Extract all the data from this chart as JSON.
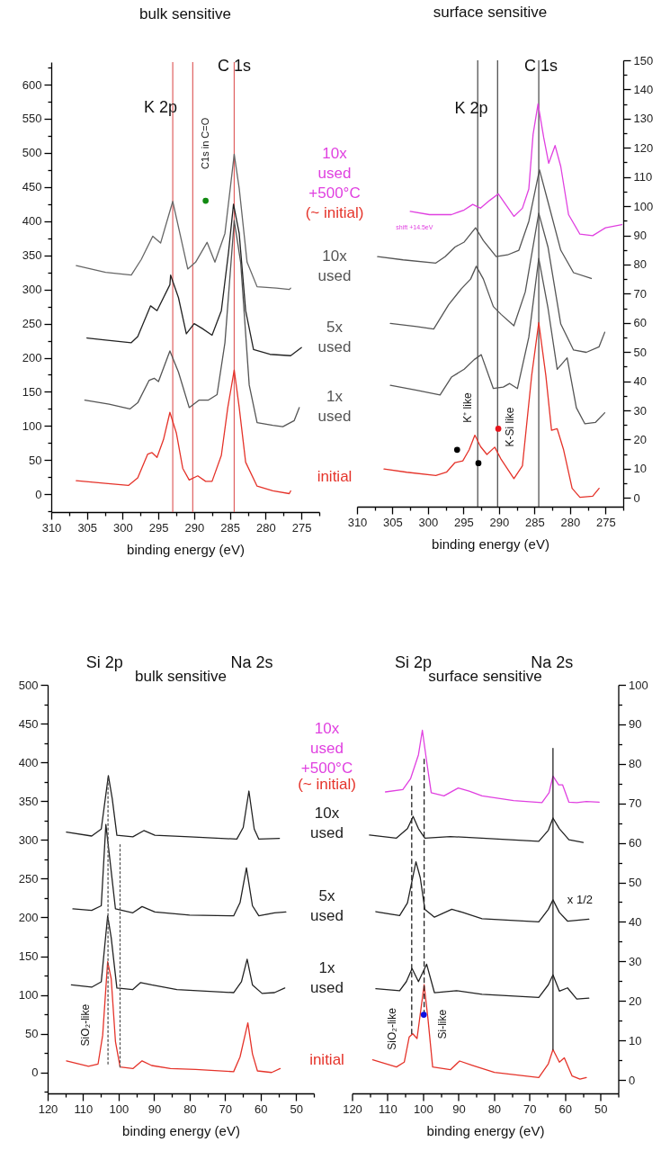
{
  "chart_data": [
    {
      "type": "line",
      "title": "bulk sensitive",
      "xlabel": "binding energy (eV)",
      "xlim": [
        310,
        272.5
      ],
      "ylim": [
        -26,
        633
      ],
      "xticks": [
        310,
        {
          "value": 307.5,
          "label": null
        },
        305,
        {
          "value": 302.5,
          "label": null
        },
        300,
        {
          "value": 297.5,
          "label": null
        },
        295,
        {
          "value": 292.5,
          "label": null
        },
        290,
        {
          "value": 287.5,
          "label": null
        },
        285,
        {
          "value": 282.5,
          "label": null
        },
        280,
        {
          "value": 277.5,
          "label": null
        },
        275,
        {
          "value": 272.5,
          "label": null
        }
      ],
      "yticks": [
        {
          "value": -25,
          "label": null
        },
        0,
        {
          "value": 25,
          "label": null
        },
        50,
        {
          "value": 75,
          "label": null
        },
        100,
        {
          "value": 125,
          "label": null
        },
        150,
        {
          "value": 175,
          "label": null
        },
        200,
        {
          "value": 225,
          "label": null
        },
        250,
        {
          "value": 275,
          "label": null
        },
        300,
        {
          "value": 325,
          "label": null
        },
        350,
        {
          "value": 375,
          "label": null
        },
        400,
        {
          "value": 425,
          "label": null
        },
        450,
        {
          "value": 475,
          "label": null
        },
        500,
        {
          "value": 525,
          "label": null
        },
        550,
        {
          "value": 575,
          "label": null
        },
        600,
        {
          "value": 625,
          "label": null
        }
      ],
      "annotations": [
        "K 2p",
        "C 1s",
        "C1s in C=O"
      ],
      "ref_lines": [
        {
          "axis": "x",
          "value": 293,
          "color": "#e06060"
        },
        {
          "axis": "x",
          "value": 290.2,
          "color": "#e06060"
        },
        {
          "axis": "x",
          "value": 284.4,
          "color": "#e06060"
        }
      ],
      "series": [
        {
          "color": "#e5332a",
          "x": [
            306.5,
            302.4,
            299.2,
            297.9,
            296.5,
            295.9,
            295.2,
            294.3,
            293.4,
            292.5,
            291.6,
            290.7,
            289.5,
            288.4,
            287.5,
            286.2,
            285.3,
            284.4,
            283.7,
            282.8,
            281.2,
            279.0,
            276.7,
            276.5
          ],
          "values": [
            20,
            16,
            13,
            24,
            59,
            61,
            54,
            80,
            120,
            90,
            38,
            21,
            27,
            19,
            19,
            57,
            127,
            182,
            127,
            47,
            12,
            5,
            1,
            5
          ]
        },
        {
          "color": "#555555",
          "x": [
            305.3,
            301.9,
            299.0,
            297.9,
            296.3,
            295.6,
            295.0,
            293.4,
            292.2,
            290.7,
            289.3,
            288.0,
            286.8,
            285.7,
            284.4,
            283.5,
            282.3,
            281.2,
            279.0,
            277.6,
            276.0,
            275.3
          ],
          "values": [
            138,
            132,
            125,
            134,
            167,
            170,
            165,
            210,
            179,
            127,
            138,
            138,
            146,
            222,
            401,
            340,
            160,
            105,
            101,
            99,
            108,
            127
          ]
        },
        {
          "color": "#222222",
          "x": [
            305.0,
            302.4,
            298.8,
            297.9,
            296.1,
            295.2,
            293.4,
            293.3,
            292.2,
            291.1,
            290.0,
            288.9,
            287.5,
            286.2,
            285.2,
            284.5,
            283.7,
            282.8,
            281.7,
            279.4,
            276.5,
            275.0
          ],
          "values": [
            229,
            226,
            222,
            231,
            276,
            269,
            307,
            321,
            288,
            235,
            250,
            243,
            233,
            269,
            354,
            425,
            382,
            269,
            212,
            205,
            203,
            215
          ]
        },
        {
          "color": "#666666",
          "x": [
            306.5,
            302.4,
            298.8,
            297.4,
            295.8,
            294.7,
            293.0,
            292.0,
            290.9,
            289.8,
            288.2,
            287.1,
            285.7,
            284.9,
            284.4,
            283.7,
            282.6,
            281.2,
            278.5,
            276.7,
            276.5
          ],
          "values": [
            335,
            325,
            321,
            344,
            378,
            368,
            429,
            382,
            330,
            340,
            369,
            340,
            382,
            453,
            498,
            448,
            340,
            304,
            302,
            300,
            302
          ]
        },
        {
          "type": "scatter",
          "color": "#118a11",
          "x": [
            288.4
          ],
          "values": [
            430
          ]
        }
      ]
    },
    {
      "type": "line",
      "title": "surface sensitive",
      "xlabel": "binding energy (eV)",
      "xlim": [
        310,
        272.5
      ],
      "y2lim": [
        -3,
        150
      ],
      "xticks": [
        310,
        {
          "value": 307.5,
          "label": null
        },
        305,
        {
          "value": 302.5,
          "label": null
        },
        300,
        {
          "value": 297.5,
          "label": null
        },
        295,
        {
          "value": 292.5,
          "label": null
        },
        290,
        {
          "value": 287.5,
          "label": null
        },
        285,
        {
          "value": 282.5,
          "label": null
        },
        280,
        {
          "value": 277.5,
          "label": null
        },
        275,
        {
          "value": 272.5,
          "label": null
        }
      ],
      "y2ticks": [
        0,
        {
          "value": 5,
          "label": null
        },
        10,
        {
          "value": 15,
          "label": null
        },
        20,
        {
          "value": 25,
          "label": null
        },
        30,
        {
          "value": 35,
          "label": null
        },
        40,
        {
          "value": 45,
          "label": null
        },
        50,
        {
          "value": 55,
          "label": null
        },
        60,
        {
          "value": 65,
          "label": null
        },
        70,
        {
          "value": 75,
          "label": null
        },
        80,
        {
          "value": 85,
          "label": null
        },
        90,
        {
          "value": 95,
          "label": null
        },
        100,
        {
          "value": 105,
          "label": null
        },
        110,
        {
          "value": 115,
          "label": null
        },
        120,
        {
          "value": 125,
          "label": null
        },
        130,
        {
          "value": 135,
          "label": null
        },
        140,
        {
          "value": 145,
          "label": null
        },
        150
      ],
      "annotations": [
        "K 2p",
        "C 1s",
        "K⁺ like",
        "K-Si like",
        "shift +14.5eV",
        "(~ initial)"
      ],
      "ref_lines": [
        {
          "axis": "x",
          "value": 293,
          "color": "#444444"
        },
        {
          "axis": "x",
          "value": 290.2,
          "color": "#444444"
        },
        {
          "axis": "x",
          "value": 284.4,
          "color": "#444444"
        }
      ],
      "series": [
        {
          "name": "initial",
          "axis": "y2",
          "color": "#e5332a",
          "x": [
            306.2,
            303.0,
            298.9,
            297.4,
            296.2,
            295.1,
            294.2,
            293.4,
            292.6,
            291.7,
            290.6,
            289.7,
            287.9,
            286.7,
            285.4,
            284.4,
            283.4,
            282.6,
            281.8,
            280.9,
            279.7,
            278.6,
            276.8,
            275.9
          ],
          "values": [
            9.9,
            8.8,
            7.7,
            8.8,
            12.1,
            12.7,
            16.5,
            21.5,
            17.6,
            14.9,
            17.4,
            13.2,
            6.6,
            11.0,
            41.9,
            60.1,
            41.9,
            23.2,
            23.7,
            16.5,
            3.3,
            0.2,
            0.6,
            3.3
          ]
        },
        {
          "name": "1x used",
          "axis": "y2",
          "color": "#555555",
          "x": [
            305.3,
            301.6,
            298.3,
            296.7,
            294.9,
            293.5,
            292.5,
            290.8,
            289.4,
            288.5,
            287.4,
            285.8,
            284.4,
            283.1,
            281.8,
            280.4,
            279.1,
            277.9,
            276.4,
            275.1
          ],
          "values": [
            38.6,
            36.9,
            35.3,
            41.4,
            44.1,
            47.4,
            49.1,
            37.5,
            38.0,
            39.2,
            37.5,
            55.1,
            82.1,
            65.1,
            44.1,
            48.0,
            30.9,
            25.4,
            25.9,
            29.2
          ]
        },
        {
          "name": "5x used",
          "axis": "y2",
          "color": "#555555",
          "x": [
            305.3,
            301.6,
            299.2,
            297.1,
            295.3,
            294.0,
            293.2,
            292.2,
            290.8,
            289.7,
            287.9,
            286.3,
            284.4,
            283.1,
            281.3,
            279.5,
            277.7,
            275.9,
            275.1
          ],
          "values": [
            59.8,
            58.7,
            57.9,
            66.2,
            71.7,
            75.0,
            79.4,
            75.0,
            65.6,
            62.9,
            59.0,
            70.6,
            97.6,
            86.0,
            59.6,
            50.7,
            49.9,
            51.8,
            56.8
          ]
        },
        {
          "name": "10x used",
          "axis": "y2",
          "color": "#555555",
          "x": [
            307.1,
            303.5,
            298.9,
            297.6,
            296.2,
            294.9,
            293.3,
            292.2,
            290.4,
            288.8,
            287.2,
            285.8,
            284.3,
            283.1,
            281.3,
            279.5,
            277.0
          ],
          "values": [
            82.7,
            81.6,
            80.5,
            82.7,
            86.0,
            87.7,
            92.6,
            88.2,
            82.7,
            83.3,
            84.9,
            94.8,
            112.5,
            101.5,
            84.9,
            77.2,
            75.2
          ]
        },
        {
          "name": "10x used +500°C",
          "axis": "y2",
          "color": "#e040e0",
          "x": [
            302.5,
            299.8,
            296.7,
            294.9,
            293.7,
            292.6,
            291.3,
            290.1,
            289.0,
            287.9,
            286.7,
            285.8,
            285.2,
            284.5,
            283.7,
            283.0,
            282.1,
            281.3,
            280.2,
            278.6,
            276.8,
            275.0,
            272.7
          ],
          "values": [
            98.2,
            97.1,
            97.1,
            98.7,
            100.6,
            99.3,
            102.0,
            104.2,
            100.4,
            96.5,
            99.3,
            105.9,
            124.6,
            135.1,
            123.5,
            114.7,
            120.8,
            113.6,
            97.1,
            90.4,
            89.9,
            92.6,
            93.7
          ]
        },
        {
          "type": "scatter",
          "axis": "y2",
          "color": "#000000",
          "x": [
            295.9,
            292.9
          ],
          "values": [
            16.5,
            11.9
          ]
        },
        {
          "type": "scatter",
          "axis": "y2",
          "color": "#e8141c",
          "x": [
            290.1
          ],
          "values": [
            23.7
          ]
        }
      ]
    },
    {
      "type": "line",
      "title": "bulk sensitive",
      "xlabel": "binding energy (eV)",
      "xlim": [
        120,
        45
      ],
      "ylim": [
        -27,
        500
      ],
      "xticks": [
        120,
        {
          "value": 115,
          "label": null
        },
        110,
        {
          "value": 105,
          "label": null
        },
        100,
        {
          "value": 95,
          "label": null
        },
        90,
        {
          "value": 85,
          "label": null
        },
        80,
        {
          "value": 75,
          "label": null
        },
        70,
        {
          "value": 65,
          "label": null
        },
        60,
        {
          "value": 55,
          "label": null
        },
        50,
        {
          "value": 45,
          "label": null
        }
      ],
      "yticks": [
        {
          "value": -25,
          "label": null
        },
        0,
        {
          "value": 25,
          "label": null
        },
        50,
        {
          "value": 75,
          "label": null
        },
        100,
        {
          "value": 125,
          "label": null
        },
        150,
        {
          "value": 175,
          "label": null
        },
        200,
        {
          "value": 225,
          "label": null
        },
        250,
        {
          "value": 275,
          "label": null
        },
        300,
        {
          "value": 325,
          "label": null
        },
        350,
        {
          "value": 375,
          "label": null
        },
        400,
        {
          "value": 425,
          "label": null
        },
        450,
        {
          "value": 475,
          "label": null
        },
        500
      ],
      "annotations": [
        "Si 2p",
        "Na 2s",
        "SiO₂-like"
      ],
      "series": [
        {
          "color": "#e5332a",
          "x": [
            114.7,
            108.5,
            105.8,
            104.5,
            103.1,
            102.1,
            100.9,
            99.6,
            96.0,
            93.4,
            90.7,
            85.4,
            78.3,
            67.6,
            65.8,
            63.6,
            62.3,
            60.9,
            56.9,
            54.5
          ],
          "values": [
            15,
            8,
            11,
            48,
            143,
            121,
            40,
            7,
            5,
            15,
            9,
            5,
            4,
            1,
            20,
            64,
            24,
            2,
            0,
            5
          ]
        },
        {
          "color": "#222222",
          "x": [
            113.3,
            107.6,
            104.9,
            103.1,
            102.1,
            100.5,
            96.0,
            93.8,
            90.7,
            83.6,
            67.6,
            65.4,
            63.8,
            62.3,
            59.6,
            56.1,
            53.2
          ],
          "values": [
            113,
            110,
            117,
            202,
            174,
            109,
            107,
            116,
            113,
            107,
            103,
            117,
            146,
            113,
            102,
            103,
            109
          ]
        },
        {
          "color": "#222222",
          "x": [
            112.9,
            107.6,
            104.9,
            103.6,
            102.7,
            100.9,
            96.0,
            93.4,
            89.8,
            80.0,
            67.6,
            65.8,
            64.0,
            62.3,
            60.5,
            56.1,
            52.9
          ],
          "values": [
            211,
            209,
            215,
            320,
            284,
            211,
            206,
            214,
            207,
            203,
            202,
            219,
            264,
            215,
            202,
            206,
            207
          ]
        },
        {
          "color": "#222222",
          "x": [
            114.7,
            107.6,
            104.9,
            102.9,
            101.8,
            100.5,
            96.0,
            92.9,
            89.8,
            80.0,
            66.7,
            64.9,
            63.3,
            61.8,
            60.5,
            54.7
          ],
          "values": [
            310,
            305,
            314,
            383,
            353,
            306,
            304,
            312,
            306,
            304,
            301,
            316,
            363,
            314,
            301,
            302
          ]
        },
        {
          "color": "#555555",
          "line_style": "dotted",
          "x": [
            103,
            103
          ],
          "values": [
            11,
            379
          ]
        },
        {
          "color": "#555555",
          "line_style": "dotted",
          "x": [
            99.6,
            99.6
          ],
          "values": [
            7,
            294
          ]
        }
      ]
    },
    {
      "type": "line",
      "title": "surface sensitive",
      "xlabel": "binding energy (eV)",
      "xlim": [
        120,
        45
      ],
      "y2lim": [
        -3.4,
        100
      ],
      "xticks": [
        120,
        {
          "value": 115,
          "label": null
        },
        110,
        {
          "value": 105,
          "label": null
        },
        100,
        {
          "value": 95,
          "label": null
        },
        90,
        {
          "value": 85,
          "label": null
        },
        80,
        {
          "value": 75,
          "label": null
        },
        70,
        {
          "value": 65,
          "label": null
        },
        60,
        {
          "value": 55,
          "label": null
        },
        50,
        {
          "value": 45,
          "label": null
        }
      ],
      "y2ticks": [
        0,
        {
          "value": 5,
          "label": null
        },
        10,
        {
          "value": 15,
          "label": null
        },
        20,
        {
          "value": 25,
          "label": null
        },
        30,
        {
          "value": 35,
          "label": null
        },
        40,
        {
          "value": 45,
          "label": null
        },
        50,
        {
          "value": 55,
          "label": null
        },
        60,
        {
          "value": 65,
          "label": null
        },
        70,
        {
          "value": 75,
          "label": null
        },
        80,
        {
          "value": 85,
          "label": null
        },
        90,
        {
          "value": 95,
          "label": null
        },
        100
      ],
      "annotations": [
        "Si 2p",
        "Na 2s",
        "SiO₂-like",
        "Si-like",
        "x 1/2",
        "(~ initial)"
      ],
      "series": [
        {
          "name": "initial",
          "axis": "y2",
          "color": "#e5332a",
          "x": [
            114.2,
            107.5,
            105.3,
            103.9,
            102.9,
            101.7,
            99.7,
            98.6,
            97.3,
            92.3,
            89.7,
            86.1,
            79.9,
            67.4,
            64.7,
            63.4,
            61.6,
            60.2,
            58.0,
            55.8,
            54.0
          ],
          "values": [
            5.1,
            3.3,
            4.5,
            10.9,
            11.7,
            10.5,
            24.1,
            15.3,
            3.3,
            2.6,
            4.8,
            3.7,
            1.9,
            0.6,
            4.1,
            7.7,
            4.5,
            5.6,
            1.0,
            0.2,
            0.6
          ]
        },
        {
          "name": "1x used",
          "axis": "y2",
          "color": "#222222",
          "x": [
            113.3,
            106.6,
            104.7,
            103.1,
            101.3,
            99.0,
            96.8,
            90.6,
            83.4,
            67.4,
            64.7,
            63.4,
            61.6,
            59.3,
            56.7,
            53.3
          ],
          "values": [
            23.1,
            22.6,
            24.9,
            28.2,
            24.9,
            29.3,
            22.1,
            22.6,
            21.7,
            20.9,
            24.1,
            26.6,
            22.5,
            23.3,
            20.5,
            20.7
          ]
        },
        {
          "name": "5x used",
          "axis": "y2",
          "color": "#222222",
          "x": [
            113.3,
            106.6,
            104.4,
            102.0,
            100.8,
            99.5,
            96.8,
            91.9,
            88.8,
            83.4,
            67.4,
            64.7,
            63.4,
            61.6,
            59.3,
            53.3
          ],
          "values": [
            42.6,
            41.6,
            44.8,
            55.2,
            51.2,
            43.2,
            41.2,
            43.2,
            42.4,
            40.8,
            40.0,
            43.2,
            45.6,
            42.4,
            40.2,
            40.7
          ]
        },
        {
          "name": "10x used",
          "axis": "y2",
          "color": "#222222",
          "x": [
            115.1,
            107.5,
            104.4,
            102.8,
            101.3,
            99.5,
            92.3,
            83.4,
            67.4,
            64.7,
            63.4,
            61.6,
            58.9,
            54.9
          ],
          "values": [
            62.0,
            61.2,
            63.6,
            66.7,
            63.6,
            61.2,
            61.6,
            61.2,
            60.4,
            63.2,
            66.3,
            63.6,
            60.8,
            60.1
          ]
        },
        {
          "name": "10x used +500°C",
          "axis": "y2",
          "color": "#e040e0",
          "x": [
            110.6,
            105.7,
            103.5,
            101.3,
            100.2,
            99.0,
            97.7,
            94.1,
            90.1,
            87.0,
            83.4,
            74.5,
            66.5,
            64.5,
            63.4,
            61.8,
            60.7,
            58.9,
            56.7,
            54.0,
            50.4
          ],
          "values": [
            72.9,
            73.5,
            76.3,
            82.3,
            88.5,
            80.7,
            72.7,
            71.9,
            73.9,
            73.1,
            71.9,
            70.7,
            70.2,
            72.7,
            76.9,
            74.7,
            74.7,
            70.3,
            70.2,
            70.5,
            70.3
          ]
        },
        {
          "axis": "y2",
          "color": "#222222",
          "line_style": "dashed",
          "x": [
            103.2,
            103.2
          ],
          "values": [
            11.7,
            74.7
          ]
        },
        {
          "axis": "y2",
          "color": "#222222",
          "line_style": "dashed",
          "x": [
            99.7,
            99.7
          ],
          "values": [
            16.5,
            81.9
          ]
        },
        {
          "axis": "y2",
          "color": "#222222",
          "line_style": "solid",
          "x": [
            63.4,
            63.4
          ],
          "values": [
            7.7,
            83.9
          ]
        },
        {
          "type": "scatter",
          "axis": "y2",
          "color": "#1010e0",
          "x": [
            99.8
          ],
          "values": [
            16.5
          ]
        }
      ]
    }
  ]
}
